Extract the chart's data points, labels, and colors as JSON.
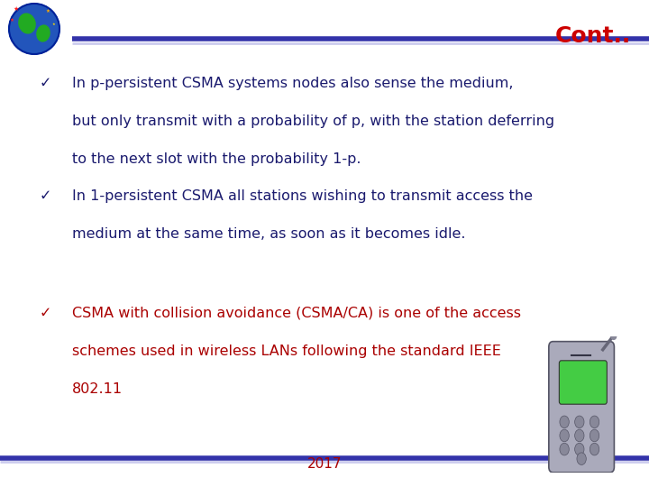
{
  "title": "Cont..",
  "title_color": "#cc0000",
  "title_fontsize": 18,
  "background_color": "#ffffff",
  "bullet_color_dark": "#1a1a6e",
  "bullet_color_red": "#aa0000",
  "bullet_char": "✓",
  "footer_text": "2017",
  "footer_color": "#aa0000",
  "bullet_fontsize": 11.5,
  "bullets": [
    {
      "color": "#1a1a6e",
      "lines": [
        "In p-persistent CSMA systems nodes also sense the medium,",
        "but only transmit with a probability of p, with the station deferring",
        "to the next slot with the probability 1-p."
      ]
    },
    {
      "color": "#1a1a6e",
      "lines": [
        "In 1-persistent CSMA all stations wishing to transmit access the",
        "medium at the same time, as soon as it becomes idle."
      ]
    },
    {
      "color": "#aa0000",
      "lines": [
        "CSMA with collision avoidance (CSMA/CA) is one of the access",
        "schemes used in wireless LANs following the standard IEEE",
        "802.11"
      ]
    }
  ]
}
